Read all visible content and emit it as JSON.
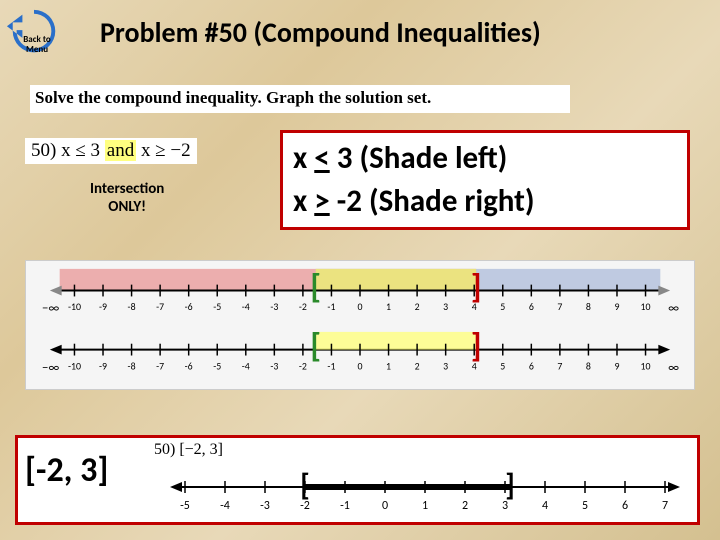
{
  "back_button": {
    "label": "Back to Menu",
    "color": "#2a6fc9"
  },
  "title": "Problem #50 (Compound Inequalities)",
  "prompt": "Solve the compound inequality. Graph the solution set.",
  "problem": {
    "num": "50)",
    "expr1": "x ≤ 3",
    "conj": "and",
    "expr2": "x ≥ −2"
  },
  "intersection_note": "Intersection\nONLY!",
  "solution": {
    "line1": "x < 3 (Shade left)",
    "line2": "x > -2 (Shade right)",
    "underline_note": "underscores under < and > indicate ≤ and ≥"
  },
  "numberline": {
    "min": -10,
    "max": 10,
    "tick_step": 1,
    "shade_left": {
      "color": "#e89090",
      "to": 3
    },
    "shade_right": {
      "color": "#a8b8d8",
      "from": -2
    },
    "overlap": {
      "color": "#e8e060",
      "from": -2,
      "to": 3
    },
    "left_bracket": {
      "at": -2,
      "color": "#2a8a2a",
      "glyph": "["
    },
    "right_bracket": {
      "at": 3,
      "color": "#c00000",
      "glyph": "]"
    },
    "infinity_left": "−∞",
    "infinity_right": "∞",
    "tick_labels": [
      "-10",
      "-9",
      "-8",
      "-7",
      "-6",
      "-5",
      "-4",
      "-3",
      "-2",
      "-1",
      "0",
      "1",
      "2",
      "3",
      "4",
      "5",
      "6",
      "7",
      "8",
      "9",
      "10"
    ]
  },
  "answer": {
    "interval": "[-2, 3]",
    "label": "50) [−2, 3]",
    "final_line": {
      "min": -5,
      "max": 7,
      "from": -2,
      "to": 3,
      "tick_labels": [
        "-5",
        "-4",
        "-3",
        "-2",
        "-1",
        "0",
        "1",
        "2",
        "3",
        "4",
        "5",
        "6",
        "7"
      ]
    }
  },
  "colors": {
    "red_border": "#c00000",
    "green": "#2a8a2a",
    "shade_pink": "#e89090",
    "shade_blue": "#a8b8d8",
    "shade_yellow": "#f0e878"
  }
}
